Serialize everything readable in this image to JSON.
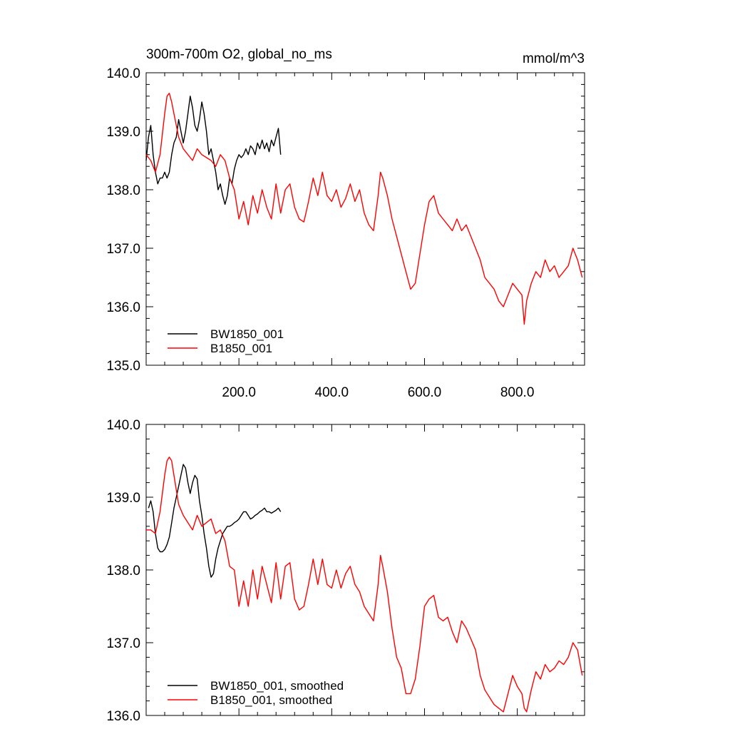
{
  "chart_data": [
    {
      "type": "line",
      "title": "300m-700m O2, global_no_ms",
      "units": "mmol/m^3",
      "xlabel": "",
      "ylabel": "",
      "xlim": [
        0,
        945
      ],
      "ylim": [
        135,
        140
      ],
      "xticks": [
        200,
        400,
        600,
        800
      ],
      "xtick_labels": [
        "200.0",
        "400.0",
        "600.0",
        "800.0"
      ],
      "yticks": [
        135,
        136,
        137,
        138,
        139,
        140
      ],
      "ytick_labels": [
        "135.0",
        "136.0",
        "137.0",
        "138.0",
        "139.0",
        "140.0"
      ],
      "legend_position": "bottom-left",
      "series": [
        {
          "name": "BW1850_001",
          "color": "#000000",
          "x": [
            0,
            5,
            10,
            15,
            20,
            25,
            30,
            35,
            40,
            45,
            50,
            55,
            60,
            65,
            70,
            75,
            80,
            85,
            90,
            95,
            100,
            105,
            110,
            115,
            120,
            125,
            130,
            135,
            140,
            145,
            150,
            155,
            160,
            165,
            170,
            175,
            180,
            185,
            190,
            195,
            200,
            205,
            210,
            215,
            220,
            225,
            230,
            235,
            240,
            245,
            250,
            255,
            260,
            265,
            270,
            275,
            280,
            285,
            290
          ],
          "values": [
            138.5,
            138.9,
            139.1,
            138.6,
            138.3,
            138.1,
            138.2,
            138.2,
            138.3,
            138.2,
            138.3,
            138.6,
            138.8,
            138.9,
            139.2,
            139.0,
            138.8,
            139.0,
            139.3,
            139.6,
            139.4,
            139.1,
            139.0,
            139.2,
            139.5,
            139.3,
            139.0,
            138.6,
            138.7,
            138.5,
            138.3,
            138.0,
            138.1,
            137.9,
            137.75,
            137.9,
            138.2,
            138.1,
            138.35,
            138.5,
            138.6,
            138.55,
            138.6,
            138.7,
            138.6,
            138.75,
            138.7,
            138.6,
            138.8,
            138.7,
            138.85,
            138.7,
            138.8,
            138.65,
            138.85,
            138.75,
            138.9,
            139.05,
            138.6
          ]
        },
        {
          "name": "B1850_001",
          "color": "#ff0000",
          "x": [
            0,
            10,
            20,
            30,
            40,
            45,
            50,
            55,
            60,
            70,
            80,
            90,
            100,
            110,
            120,
            130,
            140,
            150,
            160,
            170,
            180,
            190,
            200,
            210,
            220,
            230,
            240,
            250,
            260,
            270,
            280,
            290,
            300,
            310,
            320,
            330,
            340,
            350,
            360,
            370,
            380,
            390,
            400,
            410,
            420,
            430,
            440,
            450,
            460,
            470,
            480,
            490,
            500,
            505,
            510,
            520,
            530,
            540,
            550,
            560,
            570,
            580,
            590,
            600,
            610,
            620,
            630,
            640,
            650,
            660,
            670,
            680,
            690,
            700,
            710,
            720,
            730,
            740,
            750,
            760,
            770,
            780,
            790,
            800,
            810,
            815,
            820,
            830,
            840,
            850,
            860,
            870,
            880,
            890,
            900,
            910,
            920,
            930,
            940
          ],
          "values": [
            138.6,
            138.5,
            138.3,
            138.6,
            139.3,
            139.6,
            139.65,
            139.5,
            139.3,
            138.9,
            138.7,
            138.6,
            138.5,
            138.7,
            138.6,
            138.55,
            138.5,
            138.4,
            138.6,
            138.5,
            138.2,
            138.0,
            137.5,
            137.8,
            137.4,
            137.9,
            137.6,
            138.0,
            137.7,
            137.5,
            138.1,
            137.6,
            138.0,
            138.1,
            137.7,
            137.5,
            137.45,
            137.8,
            138.2,
            137.9,
            138.3,
            137.9,
            137.8,
            138.0,
            137.7,
            137.85,
            138.1,
            137.8,
            138.0,
            137.6,
            137.4,
            137.3,
            137.9,
            138.3,
            138.2,
            137.9,
            137.5,
            137.2,
            136.9,
            136.6,
            136.3,
            136.4,
            136.9,
            137.4,
            137.8,
            137.9,
            137.6,
            137.5,
            137.4,
            137.3,
            137.5,
            137.3,
            137.4,
            137.2,
            137.0,
            136.8,
            136.5,
            136.4,
            136.3,
            136.1,
            136.0,
            136.2,
            136.4,
            136.3,
            136.2,
            135.7,
            136.1,
            136.4,
            136.6,
            136.5,
            136.8,
            136.6,
            136.7,
            136.5,
            136.6,
            136.7,
            137.0,
            136.8,
            136.5
          ]
        }
      ]
    },
    {
      "type": "line",
      "title": "",
      "units": "",
      "xlabel": "",
      "ylabel": "",
      "xlim": [
        0,
        945
      ],
      "ylim": [
        136,
        140
      ],
      "yticks": [
        136,
        137,
        138,
        139,
        140
      ],
      "ytick_labels": [
        "136.0",
        "137.0",
        "138.0",
        "139.0",
        "140.0"
      ],
      "legend_position": "bottom-left",
      "series": [
        {
          "name": "BW1850_001, smoothed",
          "color": "#000000",
          "x": [
            5,
            10,
            15,
            20,
            25,
            30,
            35,
            40,
            45,
            50,
            55,
            60,
            65,
            70,
            75,
            80,
            85,
            90,
            95,
            100,
            105,
            110,
            115,
            120,
            125,
            130,
            135,
            140,
            145,
            150,
            155,
            160,
            165,
            170,
            175,
            180,
            185,
            190,
            195,
            200,
            205,
            210,
            215,
            220,
            225,
            230,
            235,
            240,
            245,
            250,
            255,
            260,
            265,
            270,
            275,
            280,
            285,
            290
          ],
          "values": [
            138.85,
            138.95,
            138.8,
            138.5,
            138.3,
            138.25,
            138.25,
            138.28,
            138.35,
            138.45,
            138.65,
            138.85,
            139.0,
            139.15,
            139.3,
            139.45,
            139.4,
            139.2,
            139.05,
            139.2,
            139.3,
            139.25,
            138.95,
            138.75,
            138.5,
            138.3,
            138.05,
            137.9,
            137.95,
            138.15,
            138.3,
            138.4,
            138.5,
            138.55,
            138.6,
            138.6,
            138.62,
            138.65,
            138.67,
            138.7,
            138.75,
            138.8,
            138.8,
            138.75,
            138.7,
            138.72,
            138.75,
            138.77,
            138.8,
            138.82,
            138.85,
            138.8,
            138.8,
            138.78,
            138.8,
            138.82,
            138.85,
            138.8
          ]
        },
        {
          "name": "B1850_001, smoothed",
          "color": "#ff0000",
          "x": [
            0,
            10,
            20,
            30,
            40,
            45,
            50,
            55,
            60,
            70,
            80,
            90,
            100,
            110,
            120,
            130,
            140,
            150,
            160,
            170,
            180,
            190,
            200,
            210,
            220,
            230,
            240,
            250,
            260,
            270,
            280,
            290,
            300,
            310,
            320,
            330,
            340,
            350,
            360,
            370,
            380,
            390,
            400,
            410,
            420,
            430,
            440,
            450,
            460,
            470,
            480,
            490,
            500,
            505,
            510,
            520,
            530,
            540,
            550,
            560,
            570,
            580,
            590,
            600,
            610,
            620,
            630,
            640,
            650,
            660,
            670,
            680,
            690,
            700,
            710,
            720,
            730,
            740,
            750,
            760,
            770,
            780,
            790,
            800,
            810,
            815,
            820,
            830,
            840,
            850,
            860,
            870,
            880,
            890,
            900,
            910,
            920,
            930,
            940
          ],
          "values": [
            138.55,
            138.55,
            138.5,
            138.8,
            139.3,
            139.5,
            139.55,
            139.5,
            139.3,
            138.9,
            138.75,
            138.65,
            138.55,
            138.75,
            138.6,
            138.65,
            138.7,
            138.5,
            138.55,
            138.4,
            138.05,
            138.0,
            137.5,
            137.85,
            137.5,
            138.0,
            137.6,
            138.05,
            137.8,
            137.55,
            138.1,
            137.6,
            138.05,
            138.1,
            137.6,
            137.45,
            137.5,
            137.8,
            138.15,
            137.8,
            138.15,
            137.8,
            137.75,
            138.0,
            137.75,
            137.95,
            138.05,
            137.8,
            137.7,
            137.5,
            137.4,
            137.3,
            137.8,
            138.2,
            138.05,
            137.7,
            137.2,
            136.8,
            136.65,
            136.3,
            136.3,
            136.5,
            136.95,
            137.5,
            137.6,
            137.65,
            137.35,
            137.3,
            137.35,
            137.15,
            137.0,
            137.3,
            137.2,
            137.05,
            136.9,
            136.55,
            136.35,
            136.25,
            136.15,
            136.1,
            136.05,
            136.3,
            136.55,
            136.4,
            136.3,
            136.1,
            136.05,
            136.35,
            136.6,
            136.5,
            136.7,
            136.6,
            136.65,
            136.75,
            136.7,
            136.8,
            137.0,
            136.9,
            136.55
          ]
        }
      ]
    }
  ]
}
